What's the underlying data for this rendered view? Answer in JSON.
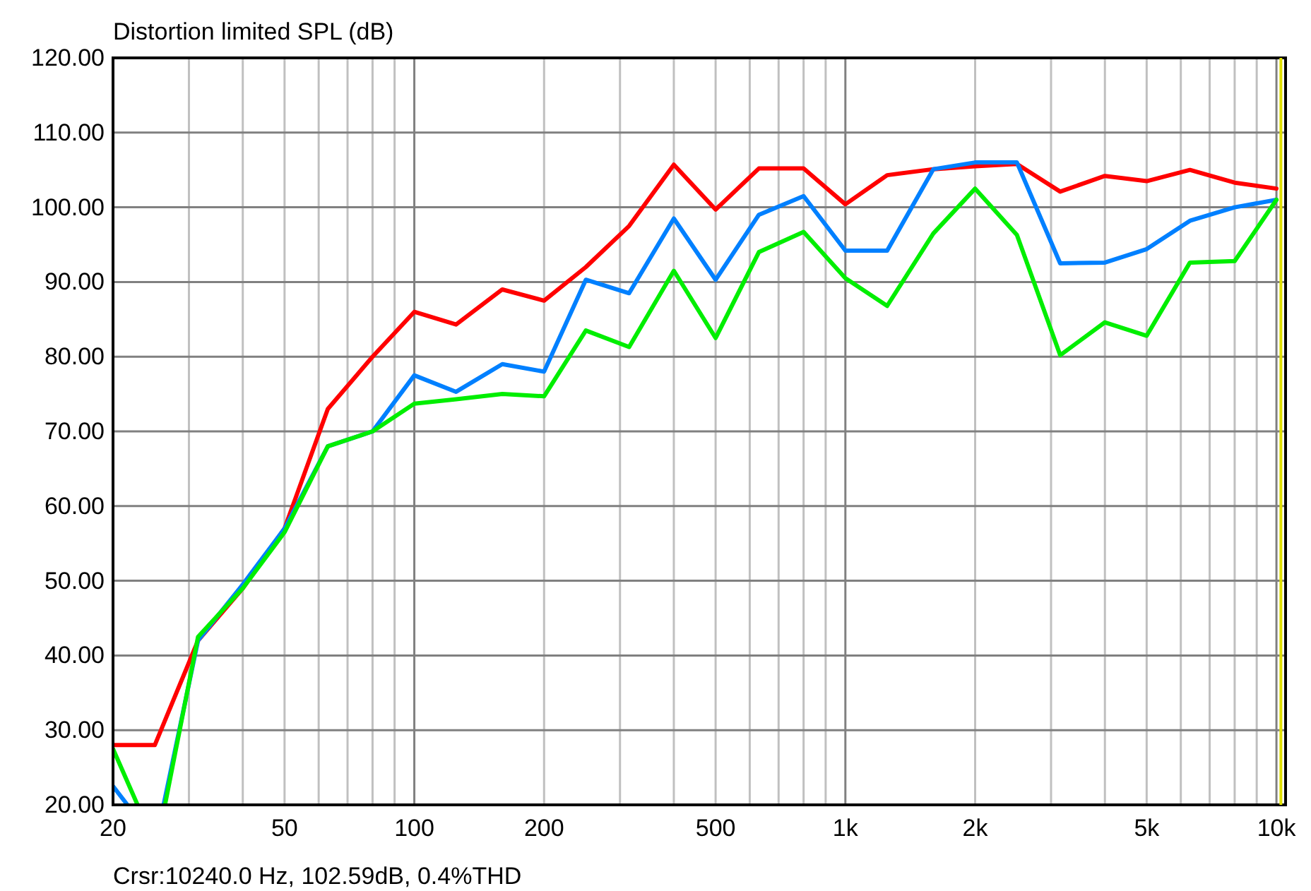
{
  "chart_data": {
    "type": "line",
    "title": "Distortion limited SPL (dB)",
    "x": [
      20,
      25,
      31.5,
      40,
      50,
      63,
      80,
      100,
      125,
      160,
      200,
      250,
      315,
      400,
      500,
      630,
      800,
      1000,
      1250,
      1600,
      2000,
      2500,
      3150,
      4000,
      5000,
      6300,
      8000,
      10000
    ],
    "series": [
      {
        "color": "#ff0000",
        "values": [
          28,
          28,
          42,
          49,
          57,
          73,
          80,
          86,
          84.3,
          89,
          87.5,
          92,
          97.5,
          105.7,
          99.7,
          105.2,
          105.2,
          100.4,
          104.3,
          105.1,
          105.5,
          105.8,
          102.1,
          104.2,
          103.5,
          105,
          103.3,
          102.5
        ]
      },
      {
        "color": "#0080ff",
        "x": [
          20,
          21.6,
          25,
          26.2,
          31.5,
          40,
          50,
          63,
          80,
          100,
          125,
          160,
          200,
          250,
          315,
          400,
          500,
          630,
          800,
          1000,
          1250,
          1600,
          2000,
          2500,
          3150,
          4000,
          5000,
          6300,
          8000,
          10000
        ],
        "values": [
          22.5,
          20,
          null,
          20,
          42,
          49.5,
          57,
          68,
          70,
          77.5,
          75.3,
          79,
          78,
          90.3,
          88.5,
          98.5,
          90.3,
          99,
          101.5,
          94.2,
          94.2,
          105.1,
          106,
          106,
          92.5,
          92.6,
          94.4,
          98.2,
          100,
          101
        ]
      },
      {
        "color": "#00ee00",
        "x": [
          20,
          22.8,
          25,
          26.4,
          31.5,
          40,
          50,
          63,
          80,
          100,
          125,
          160,
          200,
          250,
          315,
          400,
          500,
          630,
          800,
          1000,
          1250,
          1600,
          2000,
          2500,
          3150,
          4000,
          5000,
          6300,
          8000,
          10000
        ],
        "values": [
          27.5,
          20,
          null,
          20,
          42.5,
          49,
          56.5,
          68,
          70,
          73.7,
          74.3,
          75,
          74.7,
          83.5,
          81.3,
          91.5,
          82.5,
          94,
          96.7,
          90.5,
          86.8,
          96.5,
          102.5,
          96.3,
          80.2,
          84.6,
          82.8,
          92.6,
          92.8,
          101
        ]
      }
    ],
    "log": "x",
    "xlim": [
      20,
      10500
    ],
    "xticks": [
      20,
      {
        "value": 30,
        "label": null
      },
      {
        "value": 40,
        "label": null
      },
      50,
      {
        "value": 60,
        "label": null
      },
      {
        "value": 70,
        "label": null
      },
      {
        "value": 80,
        "label": null
      },
      {
        "value": 90,
        "label": null
      },
      100,
      200,
      {
        "value": 300,
        "label": null
      },
      {
        "value": 400,
        "label": null
      },
      500,
      {
        "value": 600,
        "label": null
      },
      {
        "value": 700,
        "label": null
      },
      {
        "value": 800,
        "label": null
      },
      {
        "value": 900,
        "label": null
      },
      {
        "value": 1000,
        "label": "1k"
      },
      {
        "value": 2000,
        "label": "2k"
      },
      {
        "value": 3000,
        "label": null
      },
      {
        "value": 4000,
        "label": null
      },
      {
        "value": 5000,
        "label": "5k"
      },
      {
        "value": 6000,
        "label": null
      },
      {
        "value": 7000,
        "label": null
      },
      {
        "value": 8000,
        "label": null
      },
      {
        "value": 9000,
        "label": null
      },
      {
        "value": 10000,
        "label": "10k"
      }
    ],
    "ylim": [
      20,
      120
    ],
    "yticks": [
      {
        "value": 20,
        "label": "20.00"
      },
      {
        "value": 30,
        "label": "30.00"
      },
      {
        "value": 40,
        "label": "40.00"
      },
      {
        "value": 50,
        "label": "50.00"
      },
      {
        "value": 60,
        "label": "60.00"
      },
      {
        "value": 70,
        "label": "70.00"
      },
      {
        "value": 80,
        "label": "80.00"
      },
      {
        "value": 90,
        "label": "90.00"
      },
      {
        "value": 100,
        "label": "100.00"
      },
      {
        "value": 110,
        "label": "110.00"
      },
      {
        "value": 120,
        "label": "120.00"
      }
    ],
    "grid": true,
    "ref_lines": [
      {
        "axis": "x",
        "value": 10240,
        "label": null,
        "color": "#e0e000"
      }
    ],
    "annotations": [
      "Crsr:10240.0 Hz, 102.59dB, 0.4%THD"
    ]
  }
}
